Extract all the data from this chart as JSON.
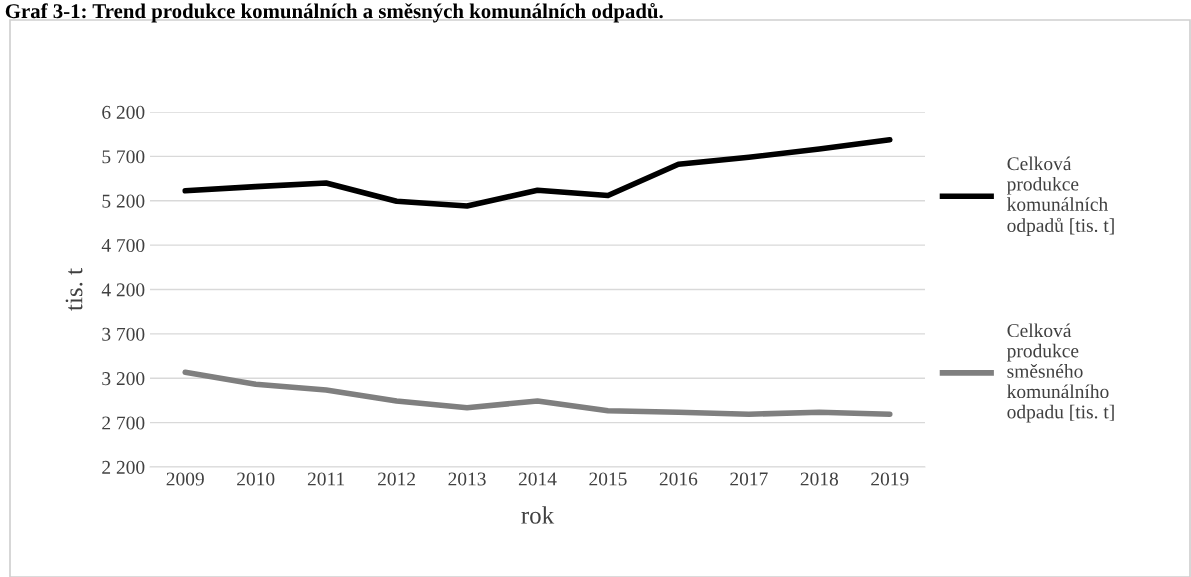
{
  "chart_data": {
    "type": "line",
    "title": "Graf 3-1: Trend produkce komunálních a směsných komunálních odpadů.",
    "xlabel": "rok",
    "ylabel": "tis. t",
    "categories": [
      "2009",
      "2010",
      "2011",
      "2012",
      "2013",
      "2014",
      "2015",
      "2016",
      "2017",
      "2018",
      "2019"
    ],
    "series": [
      {
        "name": "Celková\nprodukce\nkomunálních\nodpadů [tis. t]",
        "color": "#000000",
        "values": [
          5312,
          5359,
          5400,
          5194,
          5141,
          5318,
          5259,
          5612,
          5690,
          5782,
          5888
        ]
      },
      {
        "name": "Celková\nprodukce\nsměsného\nkomunálního\nodpadu [tis. t]",
        "color": "#7f7f7f",
        "values": [
          3267,
          3133,
          3067,
          2944,
          2867,
          2944,
          2833,
          2817,
          2794,
          2817,
          2794
        ]
      }
    ],
    "ylim": [
      2200,
      6200
    ],
    "yticks": [
      {
        "value": 2200,
        "label": "2 200"
      },
      {
        "value": 2700,
        "label": "2 700"
      },
      {
        "value": 3200,
        "label": "3 200"
      },
      {
        "value": 3700,
        "label": "3 700"
      },
      {
        "value": 4200,
        "label": "4 200"
      },
      {
        "value": 4700,
        "label": "4 700"
      },
      {
        "value": 5200,
        "label": "5 200"
      },
      {
        "value": 5700,
        "label": "5 700"
      },
      {
        "value": 6200,
        "label": "6 200"
      }
    ],
    "grid": "y",
    "legend": "right",
    "marker": "none",
    "line_style": "solid"
  }
}
